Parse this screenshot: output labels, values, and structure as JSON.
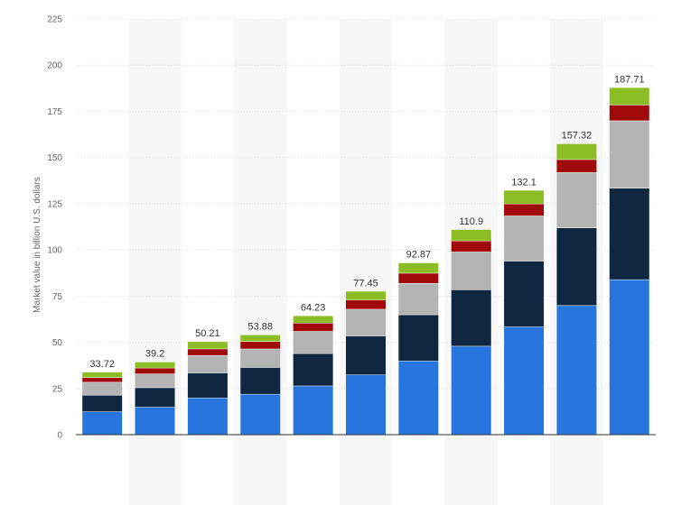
{
  "chart_data": {
    "type": "bar",
    "stacked": true,
    "title": "",
    "xlabel": "",
    "ylabel": "Market value in billion U.S. dollars",
    "ylim": [
      0,
      225
    ],
    "yticks": [
      "0",
      "25",
      "50",
      "75",
      "100",
      "125",
      "150",
      "175",
      "200",
      "225"
    ],
    "grid": true,
    "categories": [
      "",
      "",
      "",
      "",
      "",
      "",
      "",
      "",
      "",
      "",
      ""
    ],
    "totals": [
      "33.72",
      "39.2",
      "50.21",
      "53.88",
      "64.23",
      "77.45",
      "92.87",
      "110.9",
      "132.1",
      "157.32",
      "187.71"
    ],
    "series": [
      {
        "color": "#2876dd",
        "values": [
          12.5,
          15,
          20,
          22,
          26.5,
          32.5,
          40,
          48,
          58.5,
          70,
          84
        ]
      },
      {
        "color": "#0f2741",
        "values": [
          9,
          10.5,
          13.5,
          14.5,
          17.5,
          21,
          25,
          30.5,
          35.5,
          42,
          49.5
        ]
      },
      {
        "color": "#b4b4b4",
        "values": [
          7,
          7.5,
          9.5,
          10,
          12,
          14.5,
          17,
          20.5,
          24.5,
          30,
          36.5
        ]
      },
      {
        "color": "#a10a0a",
        "values": [
          2.5,
          3.2,
          3.5,
          4,
          4.5,
          5,
          5.5,
          6,
          6.5,
          7,
          8.5
        ]
      },
      {
        "color": "#8dbd24",
        "values": [
          2.72,
          3,
          3.71,
          3.38,
          3.73,
          4.45,
          5.37,
          5.9,
          7.1,
          8.32,
          9.21
        ]
      }
    ]
  }
}
